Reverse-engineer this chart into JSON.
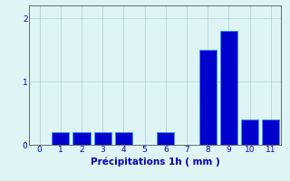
{
  "categories": [
    0,
    1,
    2,
    3,
    4,
    5,
    6,
    7,
    8,
    9,
    10,
    11
  ],
  "values": [
    0.0,
    0.2,
    0.2,
    0.2,
    0.2,
    0.0,
    0.2,
    0.0,
    1.5,
    1.8,
    0.4,
    0.4
  ],
  "bar_color": "#0000cc",
  "bar_edge_color": "#3399ff",
  "background_color": "#dff5f5",
  "grid_color": "#aacece",
  "xlabel": "Précipitations 1h ( mm )",
  "xlabel_color": "#0000bb",
  "tick_color": "#0000bb",
  "axis_color": "#555555",
  "ylim": [
    0,
    2.2
  ],
  "yticks": [
    0,
    1,
    2
  ],
  "xlim": [
    -0.5,
    11.5
  ],
  "tick_fontsize": 6.5,
  "xlabel_fontsize": 7.5
}
